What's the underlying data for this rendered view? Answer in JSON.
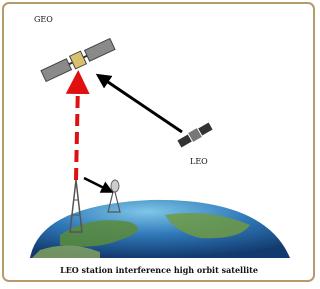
{
  "labels": {
    "geo": "GEO",
    "leo": "LEO"
  },
  "caption": "LEO station interference high orbit satellite"
}
